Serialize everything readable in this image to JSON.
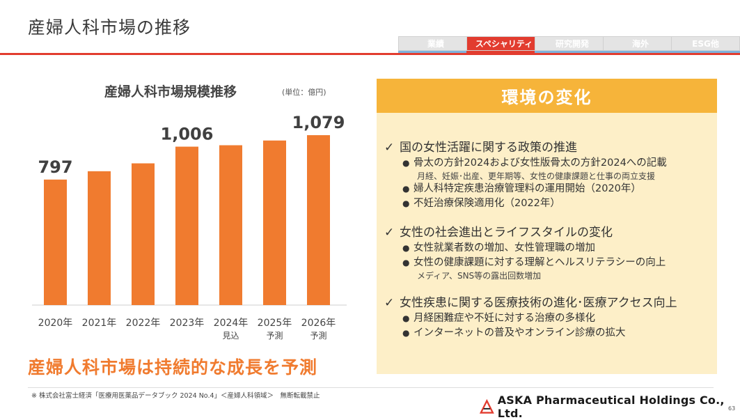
{
  "page": {
    "title": "産婦人科市場の推移",
    "page_number": "63"
  },
  "tabs": [
    {
      "label": "業績",
      "active": false
    },
    {
      "label": "スペシャリティ",
      "active": true
    },
    {
      "label": "研究開発",
      "active": false
    },
    {
      "label": "海外",
      "active": false
    },
    {
      "label": "ESG他",
      "active": false
    }
  ],
  "chart": {
    "title": "産婦人科市場規模推移",
    "unit": "(単位：億円)",
    "tagline": "産婦人科市場は持続的な成長を予測"
  },
  "chart_data": {
    "type": "bar",
    "title": "産婦人科市場規模推移",
    "categories": [
      "2020年",
      "2021年",
      "2022年",
      "2023年",
      "2024年\n見込",
      "2025年\n予測",
      "2026年\n予測"
    ],
    "values": [
      797,
      850,
      900,
      1006,
      1015,
      1045,
      1079
    ],
    "data_labels": [
      "797",
      "",
      "",
      "1,006",
      "",
      "",
      "1,079"
    ],
    "ylim": [
      0,
      1150
    ],
    "bar_color": "#f07b2f",
    "grid": false
  },
  "env": {
    "header": "環境の変化",
    "sections": [
      {
        "head": "国の女性活躍に関する政策の推進",
        "items": [
          {
            "text": "骨太の方針2024および女性版骨太の方針2024への記載",
            "note": "月経、妊娠･出産、更年期等、女性の健康課題と仕事の両立支援"
          },
          {
            "text": "婦人科特定疾患治療管理料の運用開始（2020年）",
            "note": ""
          },
          {
            "text": "不妊治療保険適用化（2022年）",
            "note": ""
          }
        ]
      },
      {
        "head": "女性の社会進出とライフスタイルの変化",
        "items": [
          {
            "text": "女性就業者数の増加、女性管理職の増加",
            "note": ""
          },
          {
            "text": "女性の健康課題に対する理解とヘルスリテラシーの向上",
            "note": "メディア、SNS等の露出回数増加"
          }
        ]
      },
      {
        "head": "女性疾患に関する医療技術の進化･医療アクセス向上",
        "items": [
          {
            "text": "月経困難症や不妊に対する治療の多様化",
            "note": ""
          },
          {
            "text": "インターネットの普及やオンライン診療の拡大",
            "note": ""
          }
        ]
      }
    ]
  },
  "footer": {
    "source": "※ 株式会社富士経済「医療用医薬品データブック 2024 No.4」＜産婦人科領域＞　無断転載禁止",
    "company": "ASKA Pharmaceutical Holdings Co., Ltd."
  },
  "colors": {
    "accent_red": "#e23c2f",
    "bar_orange": "#f07b2f",
    "env_header": "#f6b43a",
    "env_bg": "#fdefc8"
  }
}
